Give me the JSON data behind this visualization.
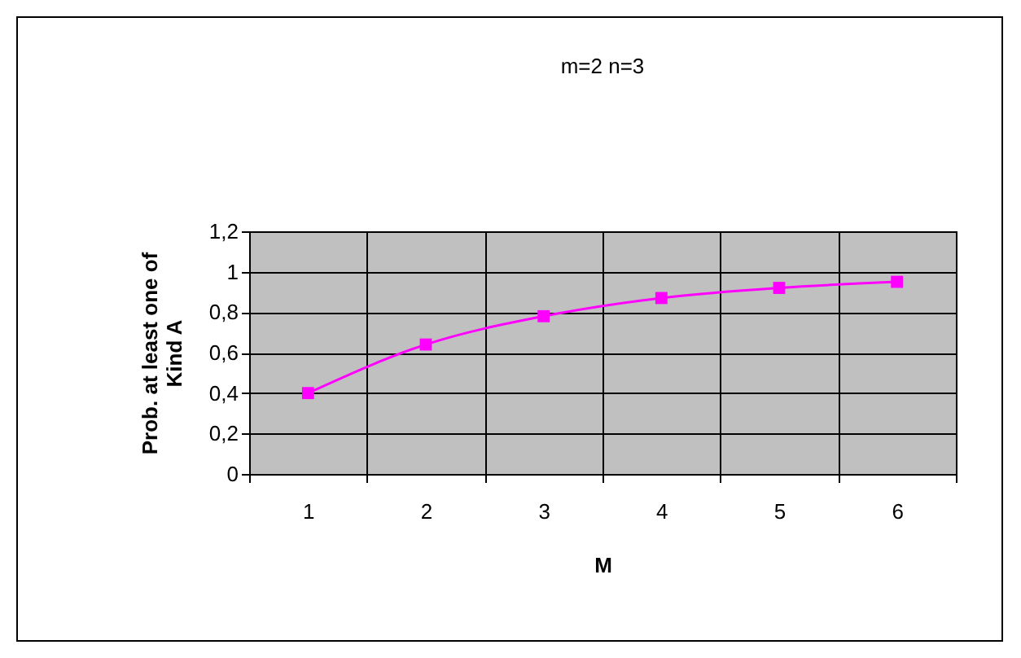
{
  "chart_data": {
    "type": "line",
    "title": "m=2  n=3",
    "xlabel": "M",
    "ylabel": "Prob. at least one of Kind A",
    "categories": [
      "1",
      "2",
      "3",
      "4",
      "5",
      "6"
    ],
    "series": [
      {
        "color": "#ff00ff",
        "values": [
          0.4,
          0.64,
          0.78,
          0.87,
          0.92,
          0.95
        ]
      }
    ],
    "ylim": [
      0,
      1.2
    ],
    "yticks": [
      0,
      {
        "value": 0.2,
        "label": "0,2"
      },
      {
        "value": 0.4,
        "label": "0,4"
      },
      {
        "value": 0.6,
        "label": "0,6"
      },
      {
        "value": 0.8,
        "label": "0,8"
      },
      1,
      {
        "value": 1.2,
        "label": "1,2"
      }
    ],
    "grid": true,
    "marker": "square",
    "line_style": "solid",
    "legend": false
  }
}
